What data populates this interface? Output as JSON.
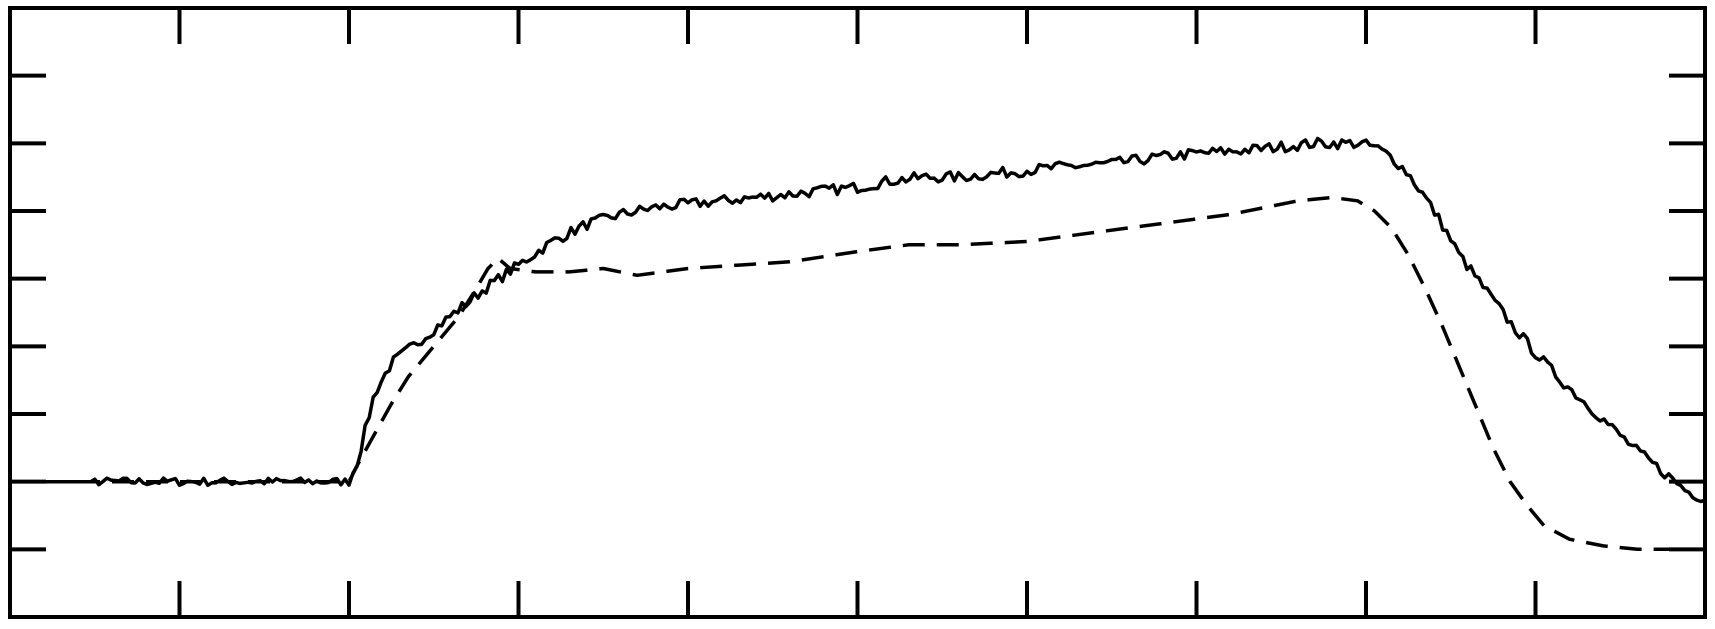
{
  "chart_data": {
    "type": "line",
    "title": "",
    "xlabel": "",
    "ylabel": "",
    "xlim": [
      0,
      10
    ],
    "ylim": [
      -1,
      8
    ],
    "x_ticks": [
      1,
      2,
      3,
      4,
      5,
      6,
      7,
      8,
      9
    ],
    "y_ticks": [
      0,
      1,
      2,
      3,
      4,
      5,
      6,
      7
    ],
    "grid": false,
    "legend": "none",
    "colors": {
      "line": "#000000",
      "background": "#ffffff"
    },
    "series": [
      {
        "style": "solid",
        "points": [
          [
            0,
            1.0
          ],
          [
            2.0,
            1.0
          ],
          [
            2.05,
            1.3
          ],
          [
            2.1,
            1.8
          ],
          [
            2.15,
            2.3
          ],
          [
            2.25,
            2.75
          ],
          [
            2.4,
            3.05
          ],
          [
            2.6,
            3.45
          ],
          [
            2.8,
            3.85
          ],
          [
            3.0,
            4.2
          ],
          [
            3.2,
            4.55
          ],
          [
            3.4,
            4.8
          ],
          [
            3.6,
            4.95
          ],
          [
            3.8,
            5.05
          ],
          [
            4.0,
            5.1
          ],
          [
            4.2,
            5.15
          ],
          [
            4.4,
            5.2
          ],
          [
            4.6,
            5.25
          ],
          [
            4.8,
            5.3
          ],
          [
            5.0,
            5.35
          ],
          [
            5.2,
            5.45
          ],
          [
            5.4,
            5.5
          ],
          [
            5.6,
            5.5
          ],
          [
            5.8,
            5.55
          ],
          [
            6.0,
            5.6
          ],
          [
            6.2,
            5.65
          ],
          [
            6.5,
            5.7
          ],
          [
            6.8,
            5.8
          ],
          [
            7.0,
            5.85
          ],
          [
            7.3,
            5.9
          ],
          [
            7.5,
            5.95
          ],
          [
            7.7,
            6.0
          ],
          [
            7.85,
            6.0
          ],
          [
            7.95,
            6.0
          ],
          [
            8.05,
            5.95
          ],
          [
            8.15,
            5.8
          ],
          [
            8.25,
            5.55
          ],
          [
            8.35,
            5.2
          ],
          [
            8.45,
            4.8
          ],
          [
            8.55,
            4.35
          ],
          [
            8.7,
            3.85
          ],
          [
            8.85,
            3.35
          ],
          [
            9.0,
            2.9
          ],
          [
            9.15,
            2.5
          ],
          [
            9.3,
            2.15
          ],
          [
            9.45,
            1.8
          ],
          [
            9.6,
            1.45
          ],
          [
            9.75,
            1.15
          ],
          [
            9.9,
            0.85
          ],
          [
            10.0,
            0.75
          ]
        ],
        "noise": [
          0.0,
          2.05,
          0.0,
          8.1
        ]
      },
      {
        "style": "dashed",
        "points": [
          [
            0,
            1.0
          ],
          [
            2.0,
            1.0
          ],
          [
            2.05,
            1.25
          ],
          [
            2.15,
            1.7
          ],
          [
            2.25,
            2.15
          ],
          [
            2.35,
            2.55
          ],
          [
            2.5,
            3.0
          ],
          [
            2.65,
            3.45
          ],
          [
            2.75,
            3.85
          ],
          [
            2.82,
            4.15
          ],
          [
            2.88,
            4.3
          ],
          [
            2.95,
            4.15
          ],
          [
            3.1,
            4.1
          ],
          [
            3.3,
            4.1
          ],
          [
            3.5,
            4.15
          ],
          [
            3.7,
            4.05
          ],
          [
            4.0,
            4.15
          ],
          [
            4.3,
            4.2
          ],
          [
            4.6,
            4.25
          ],
          [
            5.0,
            4.4
          ],
          [
            5.3,
            4.5
          ],
          [
            5.6,
            4.5
          ],
          [
            6.0,
            4.55
          ],
          [
            6.3,
            4.65
          ],
          [
            6.6,
            4.75
          ],
          [
            6.9,
            4.85
          ],
          [
            7.2,
            4.95
          ],
          [
            7.4,
            5.05
          ],
          [
            7.6,
            5.15
          ],
          [
            7.8,
            5.2
          ],
          [
            7.95,
            5.15
          ],
          [
            8.05,
            5.0
          ],
          [
            8.15,
            4.75
          ],
          [
            8.25,
            4.35
          ],
          [
            8.35,
            3.85
          ],
          [
            8.45,
            3.3
          ],
          [
            8.55,
            2.7
          ],
          [
            8.65,
            2.1
          ],
          [
            8.75,
            1.5
          ],
          [
            8.85,
            1.0
          ],
          [
            8.95,
            0.65
          ],
          [
            9.05,
            0.35
          ],
          [
            9.2,
            0.15
          ],
          [
            9.4,
            0.05
          ],
          [
            9.6,
            0.0
          ],
          [
            10.0,
            0.0
          ]
        ],
        "noise": [
          0.0,
          0.0,
          0.0,
          0.0
        ]
      }
    ]
  }
}
